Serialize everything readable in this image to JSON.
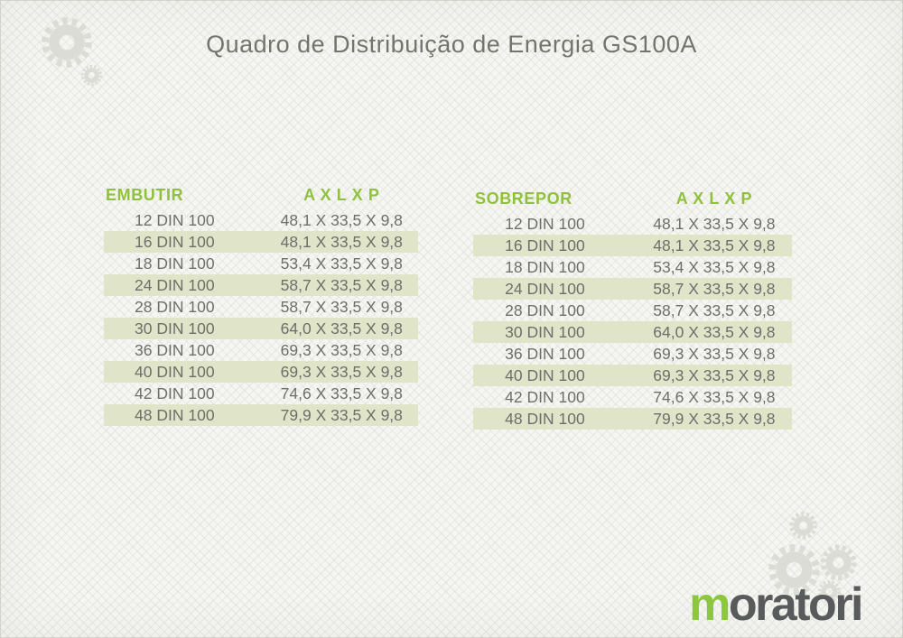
{
  "page": {
    "title": "Quadro de Distribuição de Energia GS100A"
  },
  "colors": {
    "accent_green": "#90c13e",
    "row_band": "#e0e4c9",
    "text_gray": "#6e6e6a",
    "title_gray": "#74746f",
    "logo_gray": "#595a5c",
    "logo_green": "#8dc63f",
    "gear_gray": "#dcdcd6"
  },
  "tables": [
    {
      "name": "EMBUTIR",
      "dims_header": "A X L X P",
      "rows": [
        {
          "model": "12 DIN 100",
          "dims": "48,1 X 33,5 X 9,8"
        },
        {
          "model": "16 DIN 100",
          "dims": "48,1 X 33,5 X 9,8"
        },
        {
          "model": "18 DIN 100",
          "dims": "53,4 X 33,5 X 9,8"
        },
        {
          "model": "24 DIN 100",
          "dims": "58,7 X 33,5 X 9,8"
        },
        {
          "model": "28 DIN 100",
          "dims": "58,7 X 33,5 X 9,8"
        },
        {
          "model": "30 DIN 100",
          "dims": "64,0 X 33,5 X 9,8"
        },
        {
          "model": "36 DIN 100",
          "dims": "69,3 X 33,5 X 9,8"
        },
        {
          "model": "40 DIN 100",
          "dims": "69,3 X 33,5 X 9,8"
        },
        {
          "model": "42 DIN 100",
          "dims": "74,6 X 33,5 X 9,8"
        },
        {
          "model": "48 DIN 100",
          "dims": "79,9 X 33,5 X 9,8"
        }
      ]
    },
    {
      "name": "SOBREPOR",
      "dims_header": "A X L X P",
      "rows": [
        {
          "model": "12 DIN 100",
          "dims": "48,1 X 33,5 X 9,8"
        },
        {
          "model": "16 DIN 100",
          "dims": "48,1 X 33,5 X 9,8"
        },
        {
          "model": "18 DIN 100",
          "dims": "53,4 X 33,5 X 9,8"
        },
        {
          "model": "24 DIN 100",
          "dims": "58,7 X 33,5 X 9,8"
        },
        {
          "model": "28 DIN 100",
          "dims": "58,7 X 33,5 X 9,8"
        },
        {
          "model": "30 DIN 100",
          "dims": "64,0 X 33,5 X 9,8"
        },
        {
          "model": "36 DIN 100",
          "dims": "69,3 X 33,5 X 9,8"
        },
        {
          "model": "40 DIN 100",
          "dims": "69,3 X 33,5 X 9,8"
        },
        {
          "model": "42 DIN 100",
          "dims": "74,6 X 33,5 X 9,8"
        },
        {
          "model": "48 DIN 100",
          "dims": "79,9 X 33,5 X 9,8"
        }
      ]
    }
  ],
  "logo": {
    "lead": "m",
    "rest": "oratori"
  }
}
